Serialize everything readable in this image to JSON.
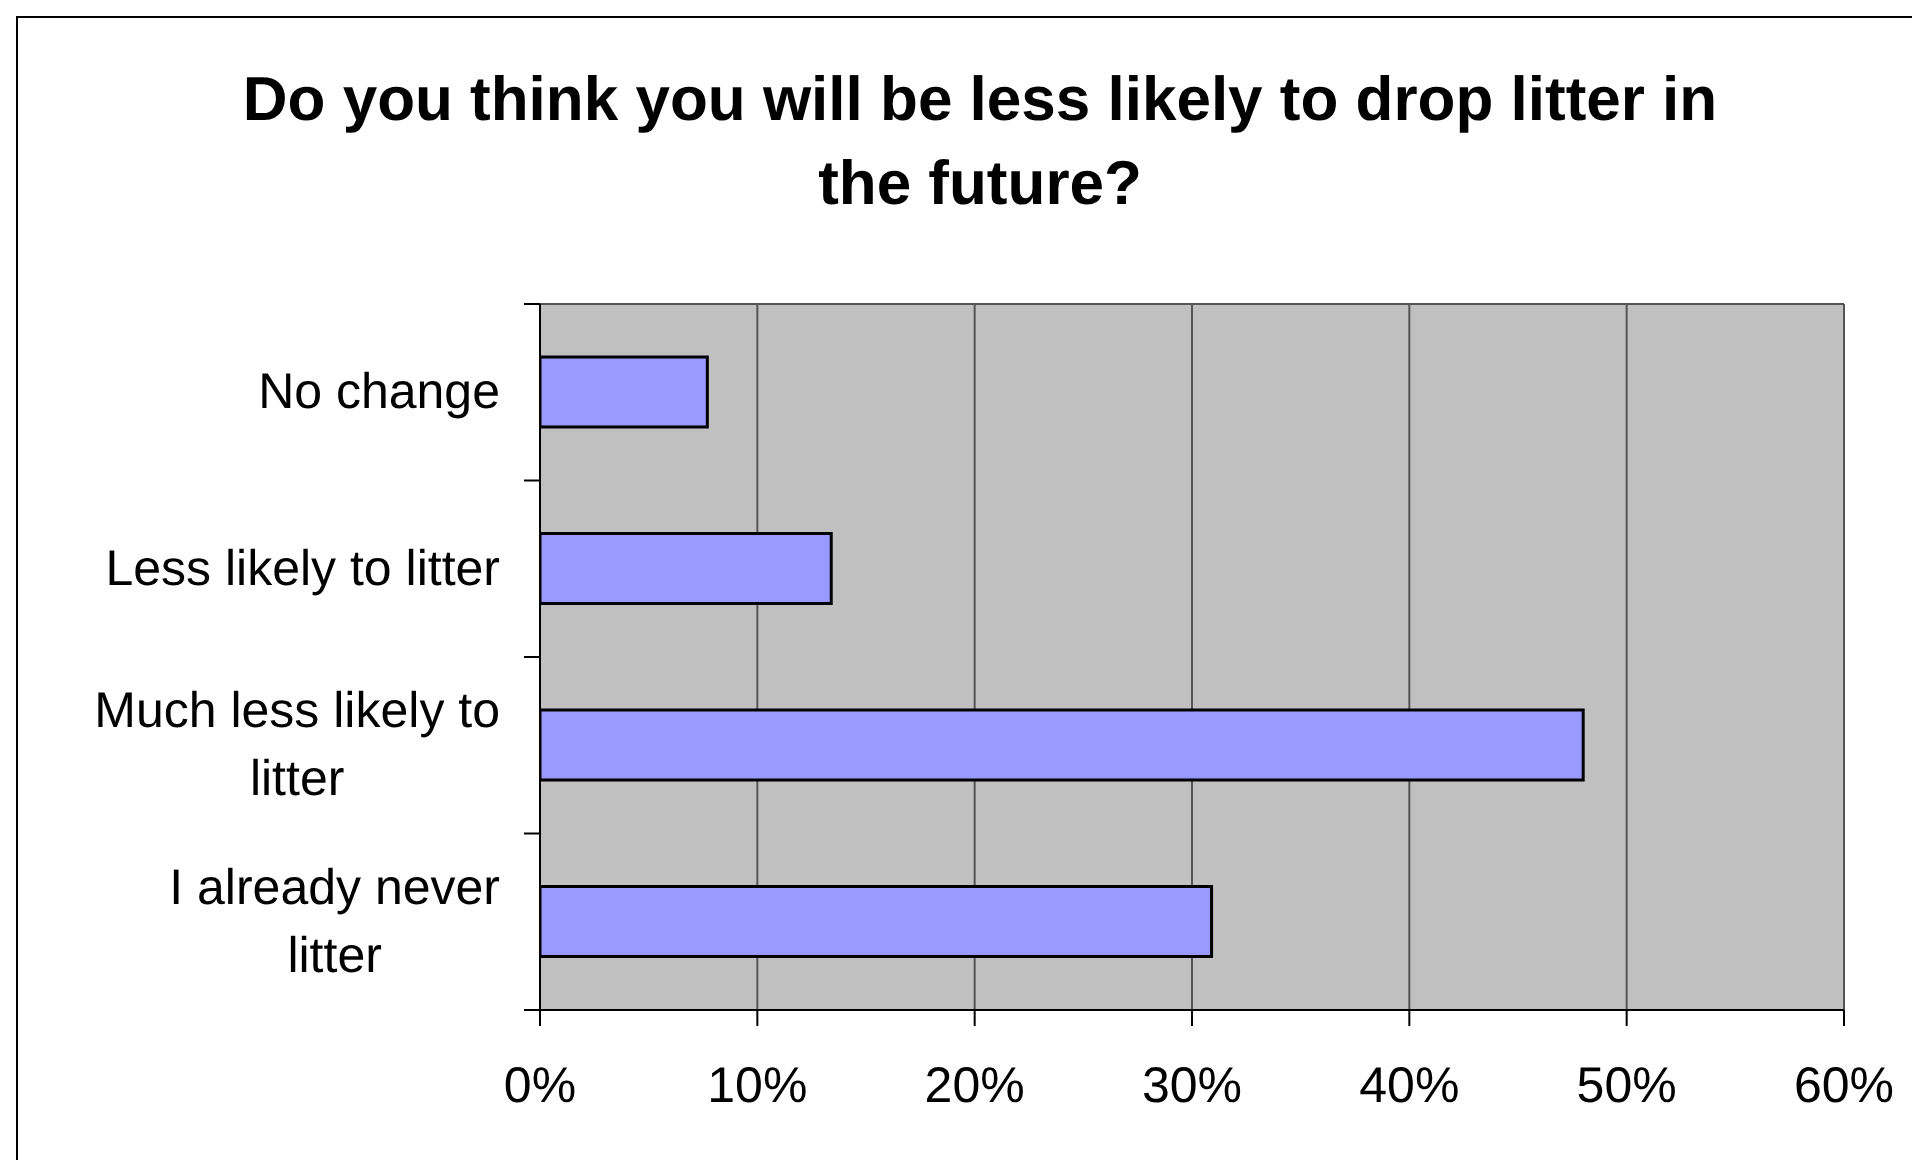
{
  "chart_data": {
    "type": "bar",
    "orientation": "horizontal",
    "title": "Do you think you will be less likely to drop litter in the future?",
    "categories": [
      "No change",
      "Less likely to litter",
      "Much less likely to litter",
      "I already never litter"
    ],
    "values": [
      7.7,
      13.4,
      48,
      30.9
    ],
    "color": "#9999ff",
    "xlim": [
      0,
      60
    ],
    "xticks": [
      {
        "value": 0,
        "label": "0%"
      },
      {
        "value": 10,
        "label": "10%"
      },
      {
        "value": 20,
        "label": "20%"
      },
      {
        "value": 30,
        "label": "30%"
      },
      {
        "value": 40,
        "label": "40%"
      },
      {
        "value": 50,
        "label": "50%"
      },
      {
        "value": 60,
        "label": "60%"
      }
    ],
    "grid": "x"
  }
}
